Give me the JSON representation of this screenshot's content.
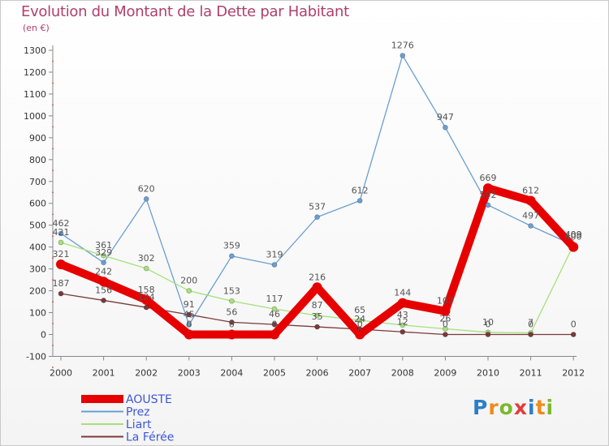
{
  "title": "Evolution du Montant de la Dette par Habitant",
  "subtitle": "(en €)",
  "logo": {
    "text": "Proxiti",
    "letters": [
      "P",
      "r",
      "o",
      "x",
      "i",
      "t",
      "i"
    ],
    "colors": [
      "#2b7fc6",
      "#f08a1c",
      "#7cb82f",
      "#e23c3c",
      "#2b7fc6",
      "#f08a1c",
      "#7cb82f"
    ]
  },
  "chart_data": {
    "type": "line",
    "title": "Evolution du Montant de la Dette par Habitant",
    "subtitle": "(en €)",
    "x": [
      "2000",
      "2001",
      "2002",
      "2003",
      "2004",
      "2005",
      "2006",
      "2007",
      "2008",
      "2009",
      "2010",
      "2011",
      "2012"
    ],
    "yticks": [
      "1300",
      "1200",
      "1100",
      "1000",
      "900",
      "800",
      "700",
      "600",
      "500",
      "400",
      "300",
      "200",
      "100",
      "0",
      "-100"
    ],
    "ylim": [
      -100,
      1300
    ],
    "grid": false,
    "legend_position": "bottom-left",
    "series": [
      {
        "name": "AOUSTE",
        "color": "#e60000",
        "width": 10,
        "values": [
          321,
          242,
          158,
          0,
          0,
          0,
          216,
          0,
          144,
          107,
          669,
          612,
          400
        ],
        "labels": [
          "321",
          "242",
          "158",
          "0",
          "0",
          "0",
          "216",
          "0",
          "144",
          "107",
          "669",
          "612",
          "400"
        ]
      },
      {
        "name": "Prez",
        "color": "#6a9ed3",
        "width": 1.3,
        "values": [
          462,
          329,
          620,
          45,
          359,
          319,
          537,
          612,
          1276,
          947,
          592,
          497,
          409
        ],
        "labels": [
          "462",
          "329",
          "620",
          "45",
          "359",
          "319",
          "537",
          "612",
          "1276",
          "947",
          "592",
          "497",
          "409"
        ]
      },
      {
        "name": "Liart",
        "color": "#a6e07a",
        "width": 1.3,
        "values": [
          421,
          361,
          302,
          200,
          153,
          117,
          87,
          65,
          43,
          26,
          10,
          7,
          409
        ],
        "labels": [
          "421",
          "361",
          "302",
          "200",
          "153",
          "117",
          "87",
          "65",
          "43",
          "26",
          "10",
          "7",
          "409"
        ]
      },
      {
        "name": "La Férée",
        "color": "#7a3a3a",
        "width": 1.3,
        "values": [
          187,
          156,
          124,
          91,
          56,
          46,
          35,
          24,
          12,
          0,
          0,
          0,
          0
        ],
        "labels": [
          "187",
          "156",
          "124",
          "91",
          "56",
          "46",
          "35",
          "24",
          "12",
          "0",
          "0",
          "0",
          "0"
        ]
      }
    ]
  }
}
